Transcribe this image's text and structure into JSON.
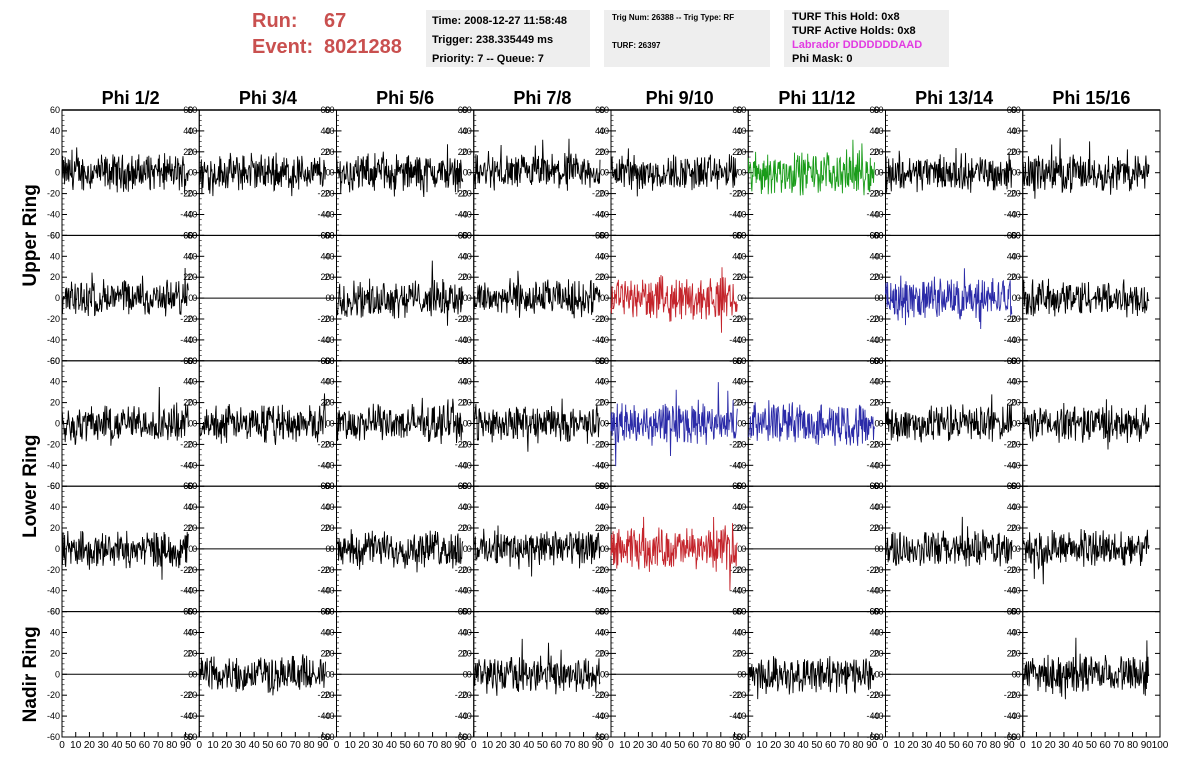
{
  "header": {
    "run_label": "Run:",
    "run_value": "67",
    "event_label": "Event:",
    "event_value": "8021288",
    "time": "Time: 2008-12-27 11:58:48",
    "trigger": "Trigger: 238.335449 ms",
    "priority": "Priority: 7 -- Queue: 7",
    "trig_num": "Trig Num: 26388 -- Trig Type: RF",
    "turf": "TURF: 26397",
    "turf_hold": "TURF This Hold: 0x8",
    "turf_active": "TURF Active Holds: 0x8",
    "labrador": "Labrador DDDDDDDAAD",
    "phi_mask": "Phi Mask: 0"
  },
  "colors": {
    "header_red": "#c9504f",
    "labrador_magenta": "#e23be2",
    "trace_black": "#000000",
    "trace_green": "#1a9c1a",
    "trace_red": "#c4242b",
    "trace_blue": "#2b2ba8",
    "panel_bg": "#eeeeee"
  },
  "chart_data": {
    "type": "line",
    "columns": [
      "Phi 1/2",
      "Phi 3/4",
      "Phi 5/6",
      "Phi 7/8",
      "Phi 9/10",
      "Phi 11/12",
      "Phi 13/14",
      "Phi 15/16"
    ],
    "rows": [
      "Upper Ring",
      "Upper Ring",
      "Lower Ring",
      "Lower Ring",
      "Nadir Ring"
    ],
    "row_labels": [
      "Upper Ring",
      "Lower Ring",
      "Nadir Ring"
    ],
    "xlim": [
      0,
      100
    ],
    "ylim": [
      -60,
      60
    ],
    "x_ticks": [
      "0",
      "10",
      "20",
      "30",
      "40",
      "50",
      "60",
      "70",
      "80",
      "90",
      "100"
    ],
    "y_ticks": [
      "60",
      "40",
      "20",
      "0",
      "-20",
      "-40",
      "-60"
    ],
    "grid": false,
    "panels": [
      [
        "noise",
        "noise",
        "noise",
        "noise",
        "noise",
        "green",
        "noise",
        "noise"
      ],
      [
        "noise",
        "flat",
        "noise",
        "noise",
        "red",
        "flat",
        "blue",
        "noise"
      ],
      [
        "noise",
        "noise",
        "noise",
        "noise",
        "blue",
        "blue",
        "noise",
        "noise"
      ],
      [
        "noise",
        "flat",
        "noise",
        "noise",
        "red",
        "flat",
        "noise",
        "noise"
      ],
      [
        "flat",
        "noise",
        "flat",
        "noise",
        "flat",
        "noise",
        "flat",
        "noise"
      ]
    ]
  }
}
